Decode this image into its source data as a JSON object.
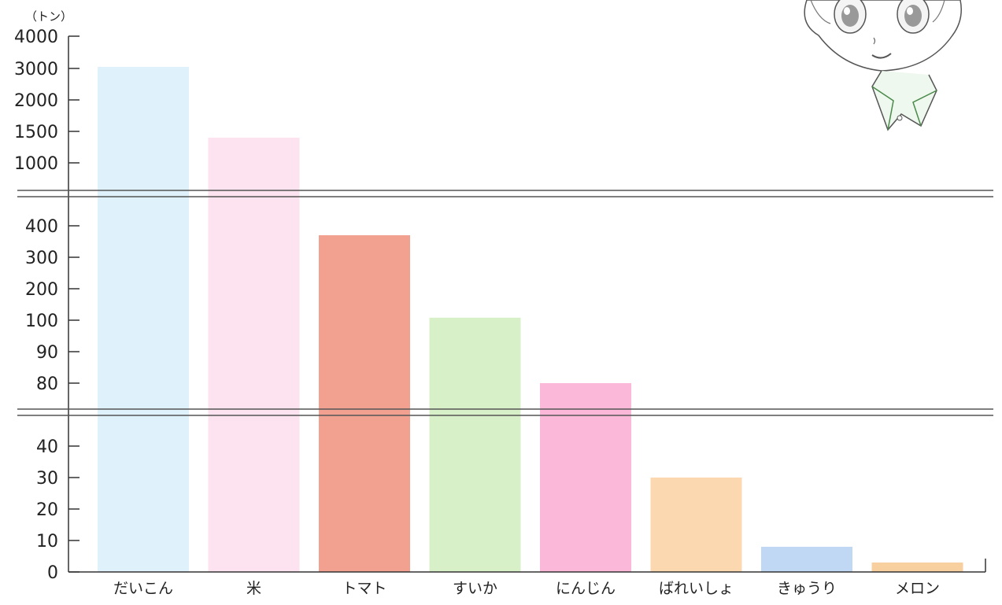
{
  "chart_data": {
    "type": "bar",
    "unit": "（トン）",
    "categories": [
      "だいこん",
      "米",
      "トマト",
      "すいか",
      "にんじん",
      "ばれいしょ",
      "きゅうり",
      "メロン"
    ],
    "values": [
      3050,
      1400,
      370,
      108,
      78,
      30,
      8,
      3
    ],
    "bar_colors": [
      "#dff2fb",
      "#fde2ef",
      "#f2a090",
      "#d8f0c8",
      "#fcb8d8",
      "#fcd8b0",
      "#c0d8f4",
      "#f8d0a0"
    ],
    "axis_broken": true,
    "y_ticks": [
      "0",
      "10",
      "20",
      "30",
      "40",
      "80",
      "90",
      "100",
      "200",
      "300",
      "400",
      "1000",
      "1500",
      "2000",
      "3000",
      "4000"
    ],
    "y_segments": [
      {
        "ticks": [
          0,
          10,
          20,
          30,
          40
        ]
      },
      {
        "ticks": [
          80,
          90,
          100,
          200,
          300,
          400
        ]
      },
      {
        "ticks": [
          1000,
          1500,
          2000,
          3000,
          4000
        ]
      }
    ],
    "xlabel": "",
    "ylabel": ""
  },
  "icons": {
    "character": "boy-character-icon"
  }
}
